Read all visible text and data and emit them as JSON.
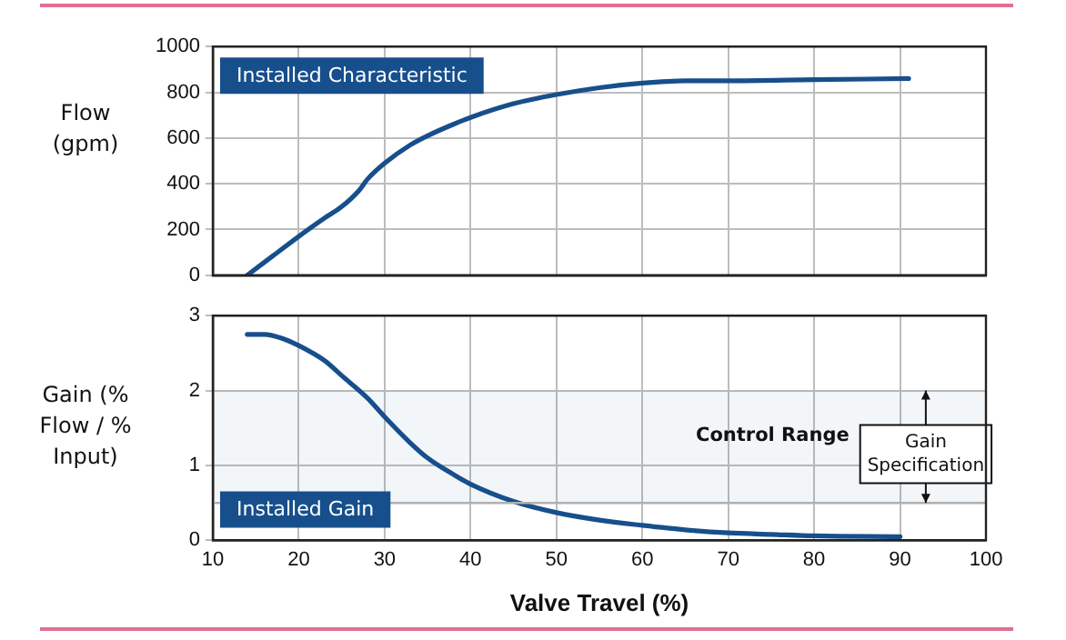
{
  "chart_data": [
    {
      "type": "line",
      "ylabel": "Flow (gpm)",
      "xlim": [
        10,
        100
      ],
      "xticks": [
        10,
        20,
        30,
        40,
        50,
        60,
        70,
        80,
        90,
        100
      ],
      "ylim": [
        0,
        1000
      ],
      "yticks": [
        0,
        200,
        400,
        600,
        800,
        1000
      ],
      "tick_labels": "y",
      "grid": true,
      "marker": "none",
      "line_style": "solid",
      "series": [
        {
          "name": "Installed Characteristic",
          "color": "#174f8c",
          "x": [
            14,
            17,
            20,
            23,
            25,
            27,
            28,
            30,
            33,
            35,
            38,
            40,
            45,
            50,
            55,
            60,
            65,
            70,
            80,
            91
          ],
          "values": [
            0,
            85,
            170,
            250,
            300,
            370,
            420,
            490,
            570,
            610,
            660,
            690,
            750,
            790,
            820,
            840,
            850,
            850,
            855,
            860
          ]
        }
      ]
    },
    {
      "type": "line",
      "ylabel": "Gain (% Flow / % Input)",
      "xlabel": "Valve Travel (%)",
      "xlim": [
        10,
        100
      ],
      "xticks": [
        10,
        20,
        30,
        40,
        50,
        60,
        70,
        80,
        90,
        100
      ],
      "ylim": [
        0,
        3
      ],
      "yticks": [
        0,
        1,
        2,
        3
      ],
      "grid": true,
      "marker": "none",
      "line_style": "solid",
      "series": [
        {
          "name": "Installed Gain",
          "color": "#174f8c",
          "x": [
            14,
            16,
            18,
            20,
            23,
            25,
            28,
            30,
            33,
            35,
            38,
            40,
            45,
            50,
            55,
            60,
            65,
            70,
            75,
            80,
            90
          ],
          "values": [
            2.75,
            2.75,
            2.7,
            2.6,
            2.4,
            2.2,
            1.9,
            1.65,
            1.3,
            1.1,
            0.88,
            0.75,
            0.52,
            0.37,
            0.27,
            0.2,
            0.14,
            0.1,
            0.08,
            0.06,
            0.05
          ]
        }
      ],
      "ref_lines": [
        {
          "axis": "y",
          "value": 0.5,
          "color": "#b0b0b0"
        }
      ],
      "bands": [
        {
          "axis": "y",
          "from": 0.5,
          "to": 2,
          "label": "Gain Specification"
        }
      ],
      "annotations": [
        "Control Range"
      ]
    }
  ]
}
